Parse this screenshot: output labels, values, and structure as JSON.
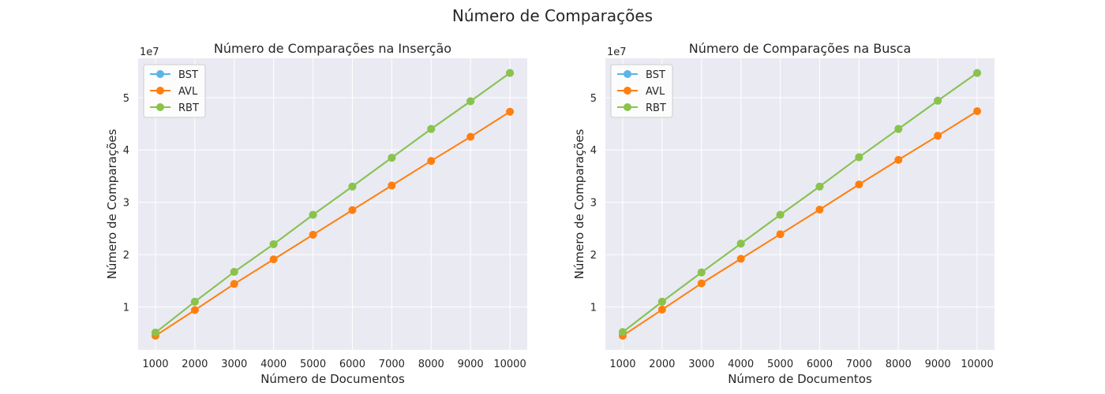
{
  "suptitle": "Número de Comparações",
  "colors": {
    "panel_bg": "#eaeaf2",
    "grid": "#ffffff",
    "BST": "#5ab4e5",
    "AVL": "#ff7f0e",
    "RBT": "#8bc34a"
  },
  "chart_data": [
    {
      "type": "line",
      "title": "Número de Comparações na Inserção",
      "xlabel": "Número de Documentos",
      "ylabel": "Número de Comparações",
      "offset_label": "1e7",
      "x": [
        1000,
        2000,
        3000,
        4000,
        5000,
        6000,
        7000,
        8000,
        9000,
        10000
      ],
      "x_ticks": [
        "1000",
        "2000",
        "3000",
        "4000",
        "5000",
        "6000",
        "7000",
        "8000",
        "9000",
        "10000"
      ],
      "y_ticks": [
        "1",
        "2",
        "3",
        "4",
        "5"
      ],
      "ylim": [
        1.8,
        57.5
      ],
      "xlim": [
        560,
        10440
      ],
      "y_scale": 1000000,
      "legend": "upper-left",
      "grid": true,
      "series": [
        {
          "name": "BST",
          "values": [
            5.1,
            11.0,
            16.7,
            22.0,
            27.6,
            33.0,
            38.5,
            44.0,
            49.3,
            54.7
          ]
        },
        {
          "name": "AVL",
          "values": [
            4.5,
            9.4,
            14.4,
            19.1,
            23.8,
            28.5,
            33.2,
            37.9,
            42.5,
            47.3
          ]
        },
        {
          "name": "RBT",
          "values": [
            5.1,
            11.0,
            16.7,
            22.0,
            27.6,
            33.0,
            38.5,
            44.0,
            49.3,
            54.7
          ]
        }
      ]
    },
    {
      "type": "line",
      "title": "Número de Comparações na Busca",
      "xlabel": "Número de Documentos",
      "ylabel": "Número de Comparações",
      "offset_label": "1e7",
      "x": [
        1000,
        2000,
        3000,
        4000,
        5000,
        6000,
        7000,
        8000,
        9000,
        10000
      ],
      "x_ticks": [
        "1000",
        "2000",
        "3000",
        "4000",
        "5000",
        "6000",
        "7000",
        "8000",
        "9000",
        "10000"
      ],
      "y_ticks": [
        "1",
        "2",
        "3",
        "4",
        "5"
      ],
      "ylim": [
        1.8,
        57.5
      ],
      "xlim": [
        560,
        10440
      ],
      "y_scale": 1000000,
      "legend": "upper-left",
      "grid": true,
      "series": [
        {
          "name": "BST",
          "values": [
            5.2,
            11.0,
            16.6,
            22.1,
            27.6,
            33.0,
            38.6,
            44.0,
            49.4,
            54.7
          ]
        },
        {
          "name": "AVL",
          "values": [
            4.5,
            9.5,
            14.5,
            19.2,
            23.9,
            28.6,
            33.4,
            38.1,
            42.7,
            47.4
          ]
        },
        {
          "name": "RBT",
          "values": [
            5.2,
            11.0,
            16.6,
            22.1,
            27.6,
            33.0,
            38.6,
            44.0,
            49.4,
            54.7
          ]
        }
      ]
    }
  ]
}
